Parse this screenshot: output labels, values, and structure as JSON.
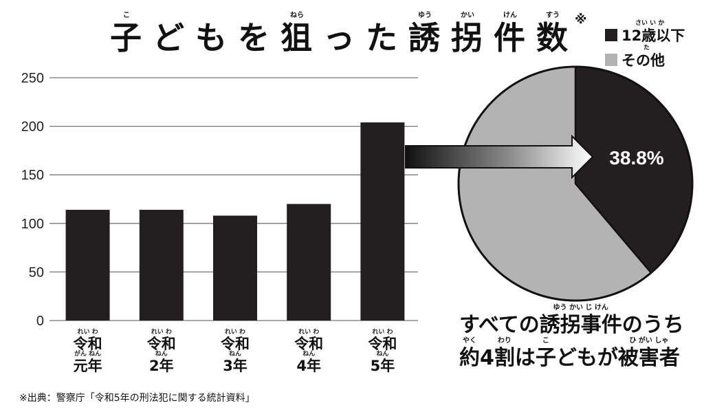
{
  "title": {
    "chars": [
      {
        "text": "子",
        "ruby": "こ"
      },
      {
        "text": "ど",
        "ruby": ""
      },
      {
        "text": "も",
        "ruby": ""
      },
      {
        "text": "を",
        "ruby": ""
      },
      {
        "text": "狙",
        "ruby": "ねら"
      },
      {
        "text": "っ",
        "ruby": ""
      },
      {
        "text": "た",
        "ruby": ""
      },
      {
        "text": "誘",
        "ruby": "ゆう"
      },
      {
        "text": "拐",
        "ruby": "かい"
      },
      {
        "text": "件",
        "ruby": "けん"
      },
      {
        "text": "数",
        "ruby": "すう"
      }
    ],
    "note": "※"
  },
  "legend": [
    {
      "label": "12歳以下",
      "ruby": "さい い か",
      "color": "#231f20"
    },
    {
      "label": "その他",
      "ruby": "た",
      "color": "#b3b3b3"
    }
  ],
  "chart_data": [
    {
      "type": "bar",
      "categories": [
        "令和元年",
        "令和2年",
        "令和3年",
        "令和4年",
        "令和5年"
      ],
      "category_lines": [
        {
          "top": "令和",
          "top_ruby": "れい わ",
          "bottom": "元年",
          "bottom_ruby": "がん ねん"
        },
        {
          "top": "令和",
          "top_ruby": "れい わ",
          "bottom": "2年",
          "bottom_ruby": "ねん"
        },
        {
          "top": "令和",
          "top_ruby": "れい わ",
          "bottom": "3年",
          "bottom_ruby": "ねん"
        },
        {
          "top": "令和",
          "top_ruby": "れい わ",
          "bottom": "4年",
          "bottom_ruby": "ねん"
        },
        {
          "top": "令和",
          "top_ruby": "れい わ",
          "bottom": "5年",
          "bottom_ruby": "ねん"
        }
      ],
      "values": [
        114,
        114,
        108,
        120,
        204
      ],
      "ylim": [
        0,
        250
      ],
      "yticks": [
        "0",
        "50",
        "100",
        "150",
        "200",
        "250"
      ],
      "grid": true,
      "bar_color": "#231f20"
    },
    {
      "type": "pie",
      "labels": [
        "12歳以下",
        "その他"
      ],
      "values": [
        38.8,
        61.2
      ],
      "colors": [
        "#231f20",
        "#b3b3b3"
      ],
      "data_label": "38.8%"
    }
  ],
  "summary": {
    "line1": [
      {
        "text": "すべての",
        "ruby": ""
      },
      {
        "text": "誘拐事件",
        "ruby": "ゆう かい じ けん"
      },
      {
        "text": "のうち",
        "ruby": ""
      }
    ],
    "line2": [
      {
        "text": "約",
        "ruby": "やく"
      },
      {
        "text": "4",
        "ruby": ""
      },
      {
        "text": "割",
        "ruby": "わり"
      },
      {
        "text": "は",
        "ruby": ""
      },
      {
        "text": "子",
        "ruby": "こ"
      },
      {
        "text": "どもが",
        "ruby": ""
      },
      {
        "text": "被害者",
        "ruby": "ひ がい しゃ"
      }
    ]
  },
  "source": "※出典：警察庁「令和5年の刑法犯に関する統計資料」"
}
